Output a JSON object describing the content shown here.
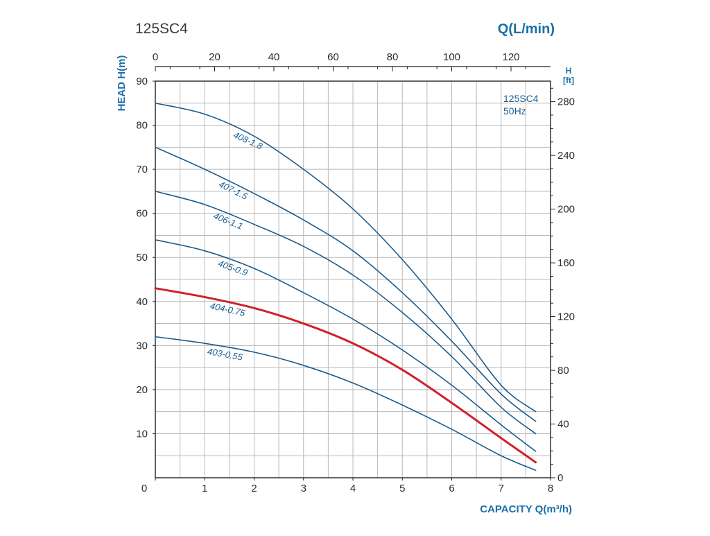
{
  "chart_data": {
    "type": "line",
    "title": "125SC4",
    "top_axis": {
      "label": "Q(L/min)",
      "ticks": [
        0,
        20,
        40,
        60,
        80,
        100,
        120
      ],
      "range": [
        0,
        133.33
      ]
    },
    "x": {
      "label": "CAPACITY Q(m³/h)",
      "ticks": [
        0,
        1,
        2,
        3,
        4,
        5,
        6,
        7,
        8
      ],
      "range": [
        0,
        8
      ]
    },
    "y": {
      "label": "HEAD H(m)",
      "ticks": [
        10,
        20,
        30,
        40,
        50,
        60,
        70,
        80,
        90
      ],
      "range": [
        0,
        90
      ]
    },
    "right_axis": {
      "label_line1": "H",
      "label_line2": "[ft]",
      "ticks": [
        0,
        40,
        80,
        120,
        160,
        200,
        240,
        280
      ],
      "range": [
        0,
        295.3
      ]
    },
    "legend": {
      "line1": "125SC4",
      "line2": "50Hz"
    },
    "grid": true,
    "colors": {
      "curve": "#1c5b8c",
      "highlight": "#d0202b",
      "grid": "#b8b8b8",
      "axis_blue": "#1b6fa8"
    },
    "series": [
      {
        "name": "408-1.8",
        "highlight": false,
        "label_q": 1.85,
        "points": [
          [
            0,
            85
          ],
          [
            1,
            82.5
          ],
          [
            2,
            77.5
          ],
          [
            3,
            70
          ],
          [
            4,
            61
          ],
          [
            5,
            49.5
          ],
          [
            6,
            36
          ],
          [
            7,
            21
          ],
          [
            7.7,
            15
          ]
        ]
      },
      {
        "name": "407-1.5",
        "highlight": false,
        "label_q": 1.55,
        "points": [
          [
            0,
            75
          ],
          [
            1,
            70
          ],
          [
            2,
            64.5
          ],
          [
            3,
            58.5
          ],
          [
            4,
            51.5
          ],
          [
            5,
            42
          ],
          [
            6,
            31
          ],
          [
            7,
            19
          ],
          [
            7.7,
            12.8
          ]
        ]
      },
      {
        "name": "406-1.1",
        "highlight": false,
        "label_q": 1.45,
        "points": [
          [
            0,
            65
          ],
          [
            1,
            62
          ],
          [
            2,
            57.5
          ],
          [
            3,
            52.5
          ],
          [
            4,
            46
          ],
          [
            5,
            37.5
          ],
          [
            6,
            27.5
          ],
          [
            7,
            16
          ],
          [
            7.7,
            10
          ]
        ]
      },
      {
        "name": "405-0.9",
        "highlight": false,
        "label_q": 1.55,
        "points": [
          [
            0,
            54
          ],
          [
            1,
            51.5
          ],
          [
            2,
            47.5
          ],
          [
            3,
            42
          ],
          [
            4,
            36
          ],
          [
            5,
            29
          ],
          [
            6,
            21
          ],
          [
            7,
            12
          ],
          [
            7.7,
            6
          ]
        ]
      },
      {
        "name": "404-0.75",
        "highlight": true,
        "label_q": 1.45,
        "points": [
          [
            0,
            43
          ],
          [
            1,
            41
          ],
          [
            2,
            38.5
          ],
          [
            3,
            35
          ],
          [
            4,
            30.5
          ],
          [
            5,
            24.5
          ],
          [
            6,
            17
          ],
          [
            7,
            9
          ],
          [
            7.7,
            3.5
          ]
        ]
      },
      {
        "name": "403-0.55",
        "highlight": false,
        "label_q": 1.4,
        "points": [
          [
            0,
            32
          ],
          [
            1,
            30.5
          ],
          [
            2,
            28.5
          ],
          [
            3,
            25.5
          ],
          [
            4,
            21.5
          ],
          [
            5,
            16.5
          ],
          [
            6,
            11
          ],
          [
            7,
            5
          ],
          [
            7.7,
            1.7
          ]
        ]
      }
    ]
  }
}
